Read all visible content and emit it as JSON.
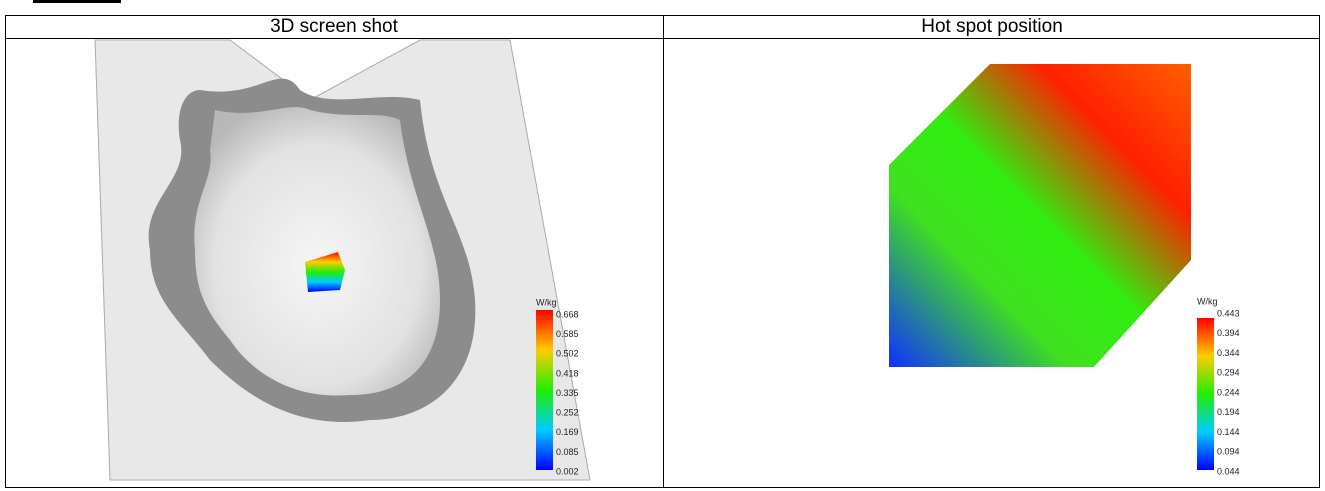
{
  "table": {
    "headers": [
      "3D screen shot",
      "Hot spot position"
    ]
  },
  "left_scale": {
    "unit": "W/kg",
    "labels": [
      "0.668",
      "0.585",
      "0.502",
      "0.418",
      "0.335",
      "0.252",
      "0.169",
      "0.085",
      "0.002"
    ]
  },
  "right_scale": {
    "unit": "W/kg",
    "labels": [
      "0.443",
      "0.394",
      "0.344",
      "0.294",
      "0.244",
      "0.194",
      "0.144",
      "0.094",
      "0.044"
    ]
  }
}
